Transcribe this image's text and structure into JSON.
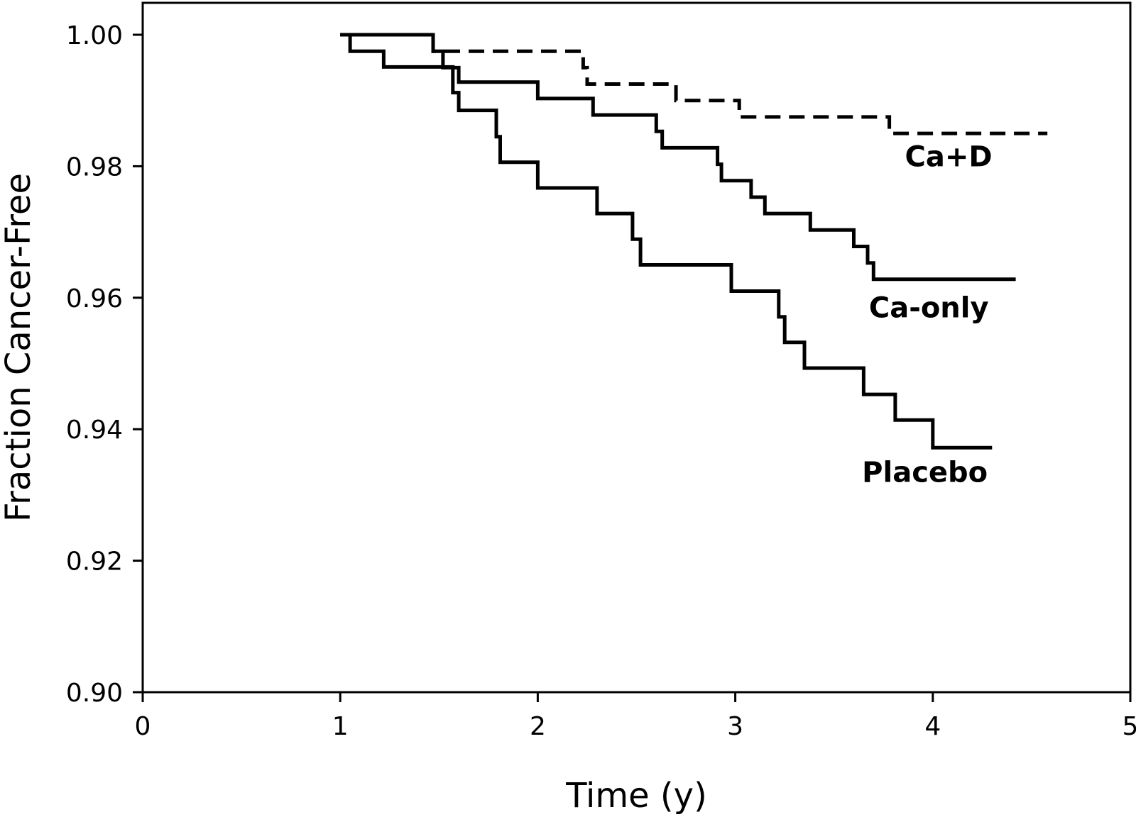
{
  "chart_data": {
    "type": "line",
    "step": true,
    "title": "",
    "xlabel": "Time (y)",
    "ylabel": "Fraction Cancer-Free",
    "xlim": [
      0,
      5
    ],
    "ylim": [
      0.9,
      1.005
    ],
    "xticks": [
      "0",
      "1",
      "2",
      "3",
      "4",
      "5"
    ],
    "yticks": [
      "0.90",
      "0.92",
      "0.94",
      "0.96",
      "0.98",
      "1.00"
    ],
    "grid": false,
    "series": [
      {
        "name": "Ca+D",
        "style": "dashed",
        "points": [
          [
            1.0,
            1.0
          ],
          [
            1.47,
            1.0
          ],
          [
            1.47,
            0.9975
          ],
          [
            2.23,
            0.9975
          ],
          [
            2.23,
            0.995
          ],
          [
            2.25,
            0.995
          ],
          [
            2.25,
            0.9925
          ],
          [
            2.7,
            0.9925
          ],
          [
            2.7,
            0.99
          ],
          [
            3.02,
            0.99
          ],
          [
            3.02,
            0.9875
          ],
          [
            3.78,
            0.9875
          ],
          [
            3.78,
            0.985
          ],
          [
            4.58,
            0.985
          ]
        ]
      },
      {
        "name": "Ca-only",
        "style": "solid",
        "points": [
          [
            1.0,
            1.0
          ],
          [
            1.47,
            1.0
          ],
          [
            1.47,
            0.9975
          ],
          [
            1.52,
            0.9975
          ],
          [
            1.52,
            0.995
          ],
          [
            1.6,
            0.995
          ],
          [
            1.6,
            0.9928
          ],
          [
            2.0,
            0.9928
          ],
          [
            2.0,
            0.9903
          ],
          [
            2.28,
            0.9903
          ],
          [
            2.28,
            0.9878
          ],
          [
            2.6,
            0.9878
          ],
          [
            2.6,
            0.9853
          ],
          [
            2.63,
            0.9853
          ],
          [
            2.63,
            0.9828
          ],
          [
            2.91,
            0.9828
          ],
          [
            2.91,
            0.9803
          ],
          [
            2.93,
            0.9803
          ],
          [
            2.93,
            0.9778
          ],
          [
            3.08,
            0.9778
          ],
          [
            3.08,
            0.9753
          ],
          [
            3.15,
            0.9753
          ],
          [
            3.15,
            0.9728
          ],
          [
            3.38,
            0.9728
          ],
          [
            3.38,
            0.9703
          ],
          [
            3.6,
            0.9703
          ],
          [
            3.6,
            0.9678
          ],
          [
            3.67,
            0.9678
          ],
          [
            3.67,
            0.9653
          ],
          [
            3.7,
            0.9653
          ],
          [
            3.7,
            0.9628
          ],
          [
            4.42,
            0.9628
          ]
        ]
      },
      {
        "name": "Placebo",
        "style": "solid",
        "points": [
          [
            1.0,
            1.0
          ],
          [
            1.05,
            1.0
          ],
          [
            1.05,
            0.9975
          ],
          [
            1.22,
            0.9975
          ],
          [
            1.22,
            0.9951
          ],
          [
            1.57,
            0.9951
          ],
          [
            1.57,
            0.9912
          ],
          [
            1.6,
            0.9912
          ],
          [
            1.6,
            0.9885
          ],
          [
            1.79,
            0.9885
          ],
          [
            1.79,
            0.9845
          ],
          [
            1.81,
            0.9845
          ],
          [
            1.81,
            0.9806
          ],
          [
            2.0,
            0.9806
          ],
          [
            2.0,
            0.9767
          ],
          [
            2.3,
            0.9767
          ],
          [
            2.3,
            0.9728
          ],
          [
            2.48,
            0.9728
          ],
          [
            2.48,
            0.9689
          ],
          [
            2.52,
            0.9689
          ],
          [
            2.52,
            0.965
          ],
          [
            2.98,
            0.965
          ],
          [
            2.98,
            0.961
          ],
          [
            3.22,
            0.961
          ],
          [
            3.22,
            0.9571
          ],
          [
            3.25,
            0.9571
          ],
          [
            3.25,
            0.9532
          ],
          [
            3.35,
            0.9532
          ],
          [
            3.35,
            0.9493
          ],
          [
            3.65,
            0.9493
          ],
          [
            3.65,
            0.9453
          ],
          [
            3.81,
            0.9453
          ],
          [
            3.81,
            0.9414
          ],
          [
            4.0,
            0.9414
          ],
          [
            4.0,
            0.9372
          ],
          [
            4.3,
            0.9372
          ]
        ]
      }
    ],
    "annotations": [
      {
        "text": "Ca+D",
        "x": 4.08,
        "y": 0.98
      },
      {
        "text": "Ca-only",
        "x": 3.98,
        "y": 0.957
      },
      {
        "text": "Placebo",
        "x": 3.96,
        "y": 0.932
      }
    ]
  }
}
